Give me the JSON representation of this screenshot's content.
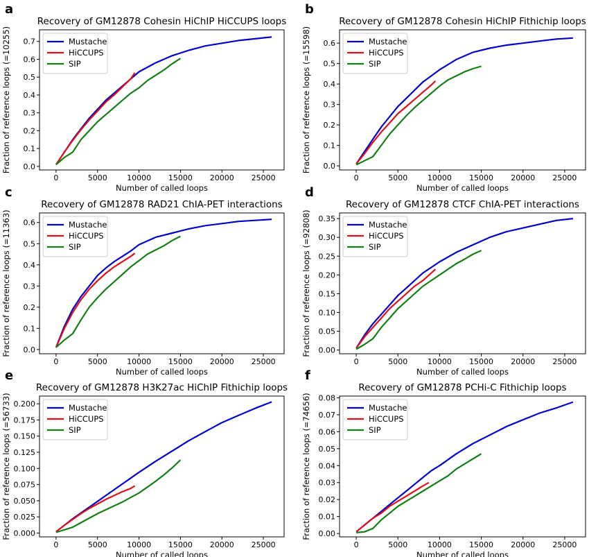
{
  "figure": {
    "legend_placement": "upper-left",
    "grid": false
  },
  "chart_data": [
    {
      "panel": "a",
      "type": "line",
      "title": "Recovery of GM12878 Cohesin HiChIP HiCCUPS loops",
      "xlabel": "Number of called loops",
      "ylabel": "Fraction of reference loops (=10255)",
      "xlim": [
        -2000,
        27500
      ],
      "ylim": [
        -0.02,
        0.765
      ],
      "xticks": [
        0,
        5000,
        10000,
        15000,
        20000,
        25000
      ],
      "yticks": [
        0.0,
        0.1,
        0.2,
        0.3,
        0.4,
        0.5,
        0.6,
        0.7
      ],
      "ytick_labels": [
        "0.0",
        "0.1",
        "0.2",
        "0.3",
        "0.4",
        "0.5",
        "0.6",
        "0.7"
      ],
      "series": [
        {
          "name": "Mustache",
          "color": "#0000cc",
          "x": [
            0,
            1000,
            2000,
            3000,
            4000,
            5000,
            6000,
            7000,
            8000,
            9000,
            10000,
            12000,
            14000,
            16000,
            18000,
            20000,
            22000,
            24000,
            26000
          ],
          "y": [
            0.01,
            0.08,
            0.15,
            0.21,
            0.27,
            0.32,
            0.37,
            0.41,
            0.45,
            0.49,
            0.53,
            0.58,
            0.62,
            0.65,
            0.675,
            0.69,
            0.705,
            0.715,
            0.725
          ]
        },
        {
          "name": "HiCCUPS",
          "color": "#e0101a",
          "x": [
            0,
            1000,
            2000,
            3000,
            4000,
            5000,
            6000,
            7000,
            8000,
            9000,
            9500
          ],
          "y": [
            0.01,
            0.08,
            0.145,
            0.205,
            0.26,
            0.31,
            0.36,
            0.4,
            0.445,
            0.49,
            0.525
          ]
        },
        {
          "name": "SIP",
          "color": "#118011",
          "x": [
            0,
            1000,
            2000,
            3000,
            4000,
            5000,
            6000,
            7000,
            8000,
            9000,
            10000,
            11000,
            12000,
            13000,
            14000,
            15000
          ],
          "y": [
            0.01,
            0.05,
            0.08,
            0.15,
            0.2,
            0.25,
            0.29,
            0.33,
            0.37,
            0.41,
            0.44,
            0.48,
            0.51,
            0.54,
            0.575,
            0.605
          ]
        }
      ]
    },
    {
      "panel": "b",
      "type": "line",
      "title": "Recovery of GM12878 Cohesin HiChIP Fithichip loops",
      "xlabel": "Number of called loops",
      "ylabel": "Fraction of reference loops (=15598)",
      "xlim": [
        -2000,
        27500
      ],
      "ylim": [
        -0.02,
        0.665
      ],
      "xticks": [
        0,
        5000,
        10000,
        15000,
        20000,
        25000
      ],
      "yticks": [
        0.0,
        0.1,
        0.2,
        0.3,
        0.4,
        0.5,
        0.6
      ],
      "ytick_labels": [
        "0.0",
        "0.1",
        "0.2",
        "0.3",
        "0.4",
        "0.5",
        "0.6"
      ],
      "series": [
        {
          "name": "Mustache",
          "color": "#0000cc",
          "x": [
            0,
            1000,
            2000,
            3000,
            4000,
            5000,
            6000,
            7000,
            8000,
            9000,
            10000,
            12000,
            14000,
            16000,
            18000,
            20000,
            22000,
            24000,
            26000
          ],
          "y": [
            0.01,
            0.07,
            0.13,
            0.19,
            0.24,
            0.29,
            0.33,
            0.37,
            0.41,
            0.44,
            0.47,
            0.52,
            0.555,
            0.575,
            0.59,
            0.6,
            0.61,
            0.62,
            0.625
          ]
        },
        {
          "name": "HiCCUPS",
          "color": "#e0101a",
          "x": [
            0,
            1000,
            2000,
            3000,
            4000,
            5000,
            6000,
            7000,
            8000,
            9000,
            9500
          ],
          "y": [
            0.01,
            0.06,
            0.115,
            0.165,
            0.21,
            0.255,
            0.29,
            0.325,
            0.36,
            0.395,
            0.415
          ]
        },
        {
          "name": "SIP",
          "color": "#118011",
          "x": [
            0,
            1000,
            2000,
            3000,
            4000,
            5000,
            6000,
            7000,
            8000,
            9000,
            10000,
            11000,
            12000,
            13000,
            14000,
            15000
          ],
          "y": [
            0.005,
            0.025,
            0.045,
            0.1,
            0.155,
            0.2,
            0.245,
            0.285,
            0.32,
            0.355,
            0.39,
            0.42,
            0.44,
            0.46,
            0.475,
            0.487
          ]
        }
      ]
    },
    {
      "panel": "c",
      "type": "line",
      "title": "Recovery of GM12878 RAD21 ChIA-PET interactions",
      "xlabel": "Number of called loops",
      "ylabel": "Fraction of reference loops (=11363)",
      "xlim": [
        -2000,
        27500
      ],
      "ylim": [
        -0.02,
        0.645
      ],
      "xticks": [
        0,
        5000,
        10000,
        15000,
        20000,
        25000
      ],
      "yticks": [
        0.0,
        0.1,
        0.2,
        0.3,
        0.4,
        0.5,
        0.6
      ],
      "ytick_labels": [
        "0.0",
        "0.1",
        "0.2",
        "0.3",
        "0.4",
        "0.5",
        "0.6"
      ],
      "series": [
        {
          "name": "Mustache",
          "color": "#0000cc",
          "x": [
            0,
            1000,
            2000,
            3000,
            4000,
            5000,
            6000,
            7000,
            8000,
            9000,
            10000,
            12000,
            14000,
            16000,
            18000,
            20000,
            22000,
            24000,
            26000
          ],
          "y": [
            0.01,
            0.11,
            0.19,
            0.25,
            0.3,
            0.35,
            0.385,
            0.415,
            0.44,
            0.465,
            0.495,
            0.53,
            0.55,
            0.57,
            0.585,
            0.595,
            0.605,
            0.61,
            0.615
          ]
        },
        {
          "name": "HiCCUPS",
          "color": "#e0101a",
          "x": [
            0,
            1000,
            2000,
            3000,
            4000,
            5000,
            6000,
            7000,
            8000,
            9000,
            9500
          ],
          "y": [
            0.01,
            0.1,
            0.175,
            0.235,
            0.285,
            0.325,
            0.36,
            0.39,
            0.415,
            0.44,
            0.455
          ]
        },
        {
          "name": "SIP",
          "color": "#118011",
          "x": [
            0,
            1000,
            2000,
            3000,
            4000,
            5000,
            6000,
            7000,
            8000,
            9000,
            10000,
            11000,
            12000,
            13000,
            14000,
            15000
          ],
          "y": [
            0.01,
            0.045,
            0.075,
            0.14,
            0.2,
            0.245,
            0.285,
            0.32,
            0.355,
            0.39,
            0.42,
            0.45,
            0.47,
            0.49,
            0.515,
            0.535
          ]
        }
      ]
    },
    {
      "panel": "d",
      "type": "line",
      "title": "Recovery of GM12878 CTCF ChIA-PET interactions",
      "xlabel": "Number of called loops",
      "ylabel": "Fraction of reference loops (=92808)",
      "xlim": [
        -2000,
        27500
      ],
      "ylim": [
        -0.01,
        0.365
      ],
      "xticks": [
        0,
        5000,
        10000,
        15000,
        20000,
        25000
      ],
      "yticks": [
        0.0,
        0.05,
        0.1,
        0.15,
        0.2,
        0.25,
        0.3,
        0.35
      ],
      "ytick_labels": [
        "0.00",
        "0.05",
        "0.10",
        "0.15",
        "0.20",
        "0.25",
        "0.30",
        "0.35"
      ],
      "series": [
        {
          "name": "Mustache",
          "color": "#0000cc",
          "x": [
            0,
            1000,
            2000,
            3000,
            4000,
            5000,
            6000,
            7000,
            8000,
            9000,
            10000,
            12000,
            14000,
            16000,
            18000,
            20000,
            22000,
            24000,
            26000
          ],
          "y": [
            0.005,
            0.04,
            0.07,
            0.095,
            0.12,
            0.145,
            0.165,
            0.185,
            0.205,
            0.22,
            0.235,
            0.26,
            0.28,
            0.3,
            0.315,
            0.325,
            0.335,
            0.345,
            0.35
          ]
        },
        {
          "name": "HiCCUPS",
          "color": "#e0101a",
          "x": [
            0,
            1000,
            2000,
            3000,
            4000,
            5000,
            6000,
            7000,
            8000,
            9000,
            9500
          ],
          "y": [
            0.005,
            0.035,
            0.06,
            0.085,
            0.11,
            0.13,
            0.15,
            0.17,
            0.185,
            0.205,
            0.215
          ]
        },
        {
          "name": "SIP",
          "color": "#118011",
          "x": [
            0,
            1000,
            2000,
            3000,
            4000,
            5000,
            6000,
            7000,
            8000,
            9000,
            10000,
            11000,
            12000,
            13000,
            14000,
            15000
          ],
          "y": [
            0.002,
            0.015,
            0.03,
            0.06,
            0.085,
            0.11,
            0.13,
            0.15,
            0.17,
            0.185,
            0.2,
            0.215,
            0.23,
            0.242,
            0.255,
            0.265
          ]
        }
      ]
    },
    {
      "panel": "e",
      "type": "line",
      "title": "Recovery of GM12878 H3K27ac HiChIP Fithichip loops",
      "xlabel": "Number of called loops",
      "ylabel": "Fraction of reference loops (=56733)",
      "xlim": [
        -2000,
        27500
      ],
      "ylim": [
        -0.006,
        0.212
      ],
      "xticks": [
        0,
        5000,
        10000,
        15000,
        20000,
        25000
      ],
      "yticks": [
        0.0,
        0.025,
        0.05,
        0.075,
        0.1,
        0.125,
        0.15,
        0.175,
        0.2
      ],
      "ytick_labels": [
        "0.000",
        "0.025",
        "0.050",
        "0.075",
        "0.100",
        "0.125",
        "0.150",
        "0.175",
        "0.200"
      ],
      "series": [
        {
          "name": "Mustache",
          "color": "#0000cc",
          "x": [
            0,
            1000,
            2000,
            3000,
            4000,
            5000,
            6000,
            7000,
            8000,
            9000,
            10000,
            12000,
            14000,
            16000,
            18000,
            20000,
            22000,
            24000,
            26000
          ],
          "y": [
            0.002,
            0.012,
            0.022,
            0.031,
            0.04,
            0.049,
            0.058,
            0.067,
            0.076,
            0.085,
            0.094,
            0.111,
            0.127,
            0.143,
            0.157,
            0.171,
            0.182,
            0.193,
            0.203
          ]
        },
        {
          "name": "HiCCUPS",
          "color": "#e0101a",
          "x": [
            0,
            1000,
            2000,
            3000,
            4000,
            5000,
            6000,
            7000,
            8000,
            9000,
            9500
          ],
          "y": [
            0.002,
            0.012,
            0.021,
            0.03,
            0.038,
            0.045,
            0.052,
            0.058,
            0.064,
            0.069,
            0.073
          ]
        },
        {
          "name": "SIP",
          "color": "#118011",
          "x": [
            0,
            1000,
            2000,
            3000,
            4000,
            5000,
            6000,
            7000,
            8000,
            9000,
            10000,
            11000,
            12000,
            13000,
            14000,
            15000
          ],
          "y": [
            0.001,
            0.005,
            0.009,
            0.016,
            0.023,
            0.03,
            0.036,
            0.042,
            0.048,
            0.055,
            0.062,
            0.071,
            0.08,
            0.09,
            0.101,
            0.113
          ]
        }
      ]
    },
    {
      "panel": "f",
      "type": "line",
      "title": "Recovery of GM12878 PCHi-C Fithichip loops",
      "xlabel": "Number of called loops",
      "ylabel": "Fraction of reference loops (=74656)",
      "xlim": [
        -2000,
        27500
      ],
      "ylim": [
        -0.002,
        0.081
      ],
      "xticks": [
        0,
        5000,
        10000,
        15000,
        20000,
        25000
      ],
      "yticks": [
        0.0,
        0.01,
        0.02,
        0.03,
        0.04,
        0.05,
        0.06,
        0.07,
        0.08
      ],
      "ytick_labels": [
        "0.00",
        "0.01",
        "0.02",
        "0.03",
        "0.04",
        "0.05",
        "0.06",
        "0.07",
        "0.08"
      ],
      "series": [
        {
          "name": "Mustache",
          "color": "#0000cc",
          "x": [
            0,
            1000,
            2000,
            3000,
            4000,
            5000,
            6000,
            7000,
            8000,
            9000,
            10000,
            12000,
            14000,
            16000,
            18000,
            20000,
            22000,
            24000,
            26000
          ],
          "y": [
            0.001,
            0.005,
            0.009,
            0.013,
            0.017,
            0.021,
            0.025,
            0.029,
            0.033,
            0.037,
            0.04,
            0.047,
            0.053,
            0.058,
            0.063,
            0.067,
            0.071,
            0.074,
            0.0775
          ]
        },
        {
          "name": "HiCCUPS",
          "color": "#e0101a",
          "x": [
            0,
            1000,
            2000,
            3000,
            4000,
            5000,
            6000,
            7000,
            8000,
            8700
          ],
          "y": [
            0.001,
            0.005,
            0.009,
            0.012,
            0.016,
            0.019,
            0.022,
            0.025,
            0.028,
            0.03
          ]
        },
        {
          "name": "SIP",
          "color": "#118011",
          "x": [
            0,
            1000,
            2000,
            3000,
            4000,
            5000,
            6000,
            7000,
            8000,
            9000,
            10000,
            11000,
            12000,
            13000,
            14000,
            15000
          ],
          "y": [
            0.0005,
            0.001,
            0.003,
            0.008,
            0.012,
            0.016,
            0.019,
            0.022,
            0.025,
            0.028,
            0.031,
            0.034,
            0.038,
            0.041,
            0.044,
            0.047
          ]
        }
      ]
    }
  ]
}
